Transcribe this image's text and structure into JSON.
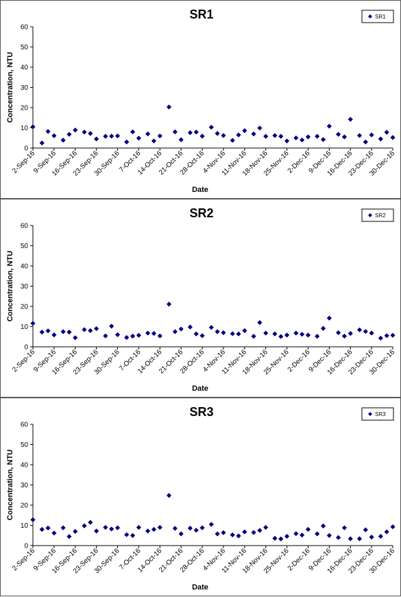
{
  "chart_data": [
    {
      "type": "scatter",
      "title": "SR1",
      "xlabel": "Date",
      "ylabel": "Concentration, NTU",
      "legend": {
        "entry": "SR1",
        "placement": "top-right"
      },
      "ylim": [
        0,
        60
      ],
      "yticks": [
        0,
        10,
        20,
        30,
        40,
        50,
        60
      ],
      "xlim": [
        "2016-09-02",
        "2016-12-30"
      ],
      "xtick_labels": [
        "2-Sep-16",
        "9-Sep-16",
        "16-Sep-16",
        "23-Sep-16",
        "30-Sep-16",
        "7-Oct-16",
        "14-Oct-16",
        "21-Oct-16",
        "28-Oct-16",
        "4-Nov-16",
        "11-Nov-16",
        "18-Nov-16",
        "25-Nov-16",
        "2-Dec-16",
        "9-Dec-16",
        "16-Dec-16",
        "23-Dec-16",
        "30-Dec-16"
      ],
      "marker_color": "#000080",
      "grid": false,
      "series": [
        {
          "name": "SR1",
          "points": [
            [
              "2016-09-02",
              10.5
            ],
            [
              "2016-09-05",
              2.5
            ],
            [
              "2016-09-07",
              8.2
            ],
            [
              "2016-09-09",
              6.1
            ],
            [
              "2016-09-12",
              3.9
            ],
            [
              "2016-09-14",
              6.8
            ],
            [
              "2016-09-16",
              8.9
            ],
            [
              "2016-09-19",
              7.9
            ],
            [
              "2016-09-21",
              7.2
            ],
            [
              "2016-09-23",
              4.5
            ],
            [
              "2016-09-26",
              5.8
            ],
            [
              "2016-09-28",
              5.9
            ],
            [
              "2016-09-30",
              6.0
            ],
            [
              "2016-10-03",
              3.0
            ],
            [
              "2016-10-05",
              8.0
            ],
            [
              "2016-10-07",
              4.9
            ],
            [
              "2016-10-10",
              7.0
            ],
            [
              "2016-10-12",
              3.5
            ],
            [
              "2016-10-14",
              6.0
            ],
            [
              "2016-10-17",
              20.3
            ],
            [
              "2016-10-19",
              8.0
            ],
            [
              "2016-10-21",
              4.1
            ],
            [
              "2016-10-24",
              7.6
            ],
            [
              "2016-10-26",
              7.9
            ],
            [
              "2016-10-28",
              5.9
            ],
            [
              "2016-10-31",
              10.3
            ],
            [
              "2016-11-02",
              7.2
            ],
            [
              "2016-11-04",
              6.2
            ],
            [
              "2016-11-07",
              3.8
            ],
            [
              "2016-11-09",
              6.5
            ],
            [
              "2016-11-11",
              8.6
            ],
            [
              "2016-11-14",
              7.0
            ],
            [
              "2016-11-16",
              9.9
            ],
            [
              "2016-11-18",
              5.8
            ],
            [
              "2016-11-21",
              6.2
            ],
            [
              "2016-11-23",
              5.8
            ],
            [
              "2016-11-25",
              3.5
            ],
            [
              "2016-11-28",
              5.0
            ],
            [
              "2016-11-30",
              4.0
            ],
            [
              "2016-12-02",
              5.5
            ],
            [
              "2016-12-05",
              5.8
            ],
            [
              "2016-12-07",
              4.2
            ],
            [
              "2016-12-09",
              10.8
            ],
            [
              "2016-12-12",
              6.8
            ],
            [
              "2016-12-14",
              5.5
            ],
            [
              "2016-12-16",
              14.2
            ],
            [
              "2016-12-19",
              6.2
            ],
            [
              "2016-12-21",
              3.0
            ],
            [
              "2016-12-23",
              6.5
            ],
            [
              "2016-12-26",
              4.5
            ],
            [
              "2016-12-28",
              7.8
            ],
            [
              "2016-12-30",
              5.2
            ]
          ]
        }
      ]
    },
    {
      "type": "scatter",
      "title": "SR2",
      "xlabel": "Date",
      "ylabel": "Concentration, NTU",
      "legend": {
        "entry": "SR2",
        "placement": "top-right"
      },
      "ylim": [
        0,
        60
      ],
      "yticks": [
        0,
        10,
        20,
        30,
        40,
        50,
        60
      ],
      "xlim": [
        "2016-09-02",
        "2016-12-30"
      ],
      "xtick_labels": [
        "2-Sep-16",
        "9-Sep-16",
        "16-Sep-16",
        "23-Sep-16",
        "30-Sep-16",
        "7-Oct-16",
        "14-Oct-16",
        "21-Oct-16",
        "28-Oct-16",
        "4-Nov-16",
        "11-Nov-16",
        "18-Nov-16",
        "25-Nov-16",
        "2-Dec-16",
        "9-Dec-16",
        "16-Dec-16",
        "23-Dec-16",
        "30-Dec-16"
      ],
      "marker_color": "#000080",
      "grid": false,
      "series": [
        {
          "name": "SR2",
          "points": [
            [
              "2016-09-02",
              11.6
            ],
            [
              "2016-09-05",
              7.3
            ],
            [
              "2016-09-07",
              7.9
            ],
            [
              "2016-09-09",
              5.9
            ],
            [
              "2016-09-12",
              7.5
            ],
            [
              "2016-09-14",
              7.3
            ],
            [
              "2016-09-16",
              4.5
            ],
            [
              "2016-09-19",
              8.5
            ],
            [
              "2016-09-21",
              8.0
            ],
            [
              "2016-09-23",
              9.0
            ],
            [
              "2016-09-26",
              5.4
            ],
            [
              "2016-09-28",
              10.2
            ],
            [
              "2016-09-30",
              6.0
            ],
            [
              "2016-10-03",
              4.6
            ],
            [
              "2016-10-05",
              5.3
            ],
            [
              "2016-10-07",
              5.7
            ],
            [
              "2016-10-10",
              6.8
            ],
            [
              "2016-10-12",
              6.6
            ],
            [
              "2016-10-14",
              5.4
            ],
            [
              "2016-10-17",
              21.1
            ],
            [
              "2016-10-19",
              7.5
            ],
            [
              "2016-10-21",
              8.8
            ],
            [
              "2016-10-24",
              9.8
            ],
            [
              "2016-10-26",
              6.4
            ],
            [
              "2016-10-28",
              5.5
            ],
            [
              "2016-10-31",
              9.6
            ],
            [
              "2016-11-02",
              7.5
            ],
            [
              "2016-11-04",
              7.0
            ],
            [
              "2016-11-07",
              6.5
            ],
            [
              "2016-11-09",
              6.4
            ],
            [
              "2016-11-11",
              8.0
            ],
            [
              "2016-11-14",
              5.2
            ],
            [
              "2016-11-16",
              12.0
            ],
            [
              "2016-11-18",
              6.8
            ],
            [
              "2016-11-21",
              6.4
            ],
            [
              "2016-11-23",
              5.1
            ],
            [
              "2016-11-25",
              5.8
            ],
            [
              "2016-11-28",
              6.8
            ],
            [
              "2016-11-30",
              6.2
            ],
            [
              "2016-12-02",
              5.8
            ],
            [
              "2016-12-05",
              5.2
            ],
            [
              "2016-12-07",
              9.1
            ],
            [
              "2016-12-09",
              14.2
            ],
            [
              "2016-12-12",
              7.0
            ],
            [
              "2016-12-14",
              5.3
            ],
            [
              "2016-12-16",
              6.6
            ],
            [
              "2016-12-19",
              8.4
            ],
            [
              "2016-12-21",
              7.6
            ],
            [
              "2016-12-23",
              6.8
            ],
            [
              "2016-12-26",
              4.3
            ],
            [
              "2016-12-28",
              5.5
            ],
            [
              "2016-12-30",
              5.7
            ]
          ]
        }
      ]
    },
    {
      "type": "scatter",
      "title": "SR3",
      "xlabel": "Date",
      "ylabel": "Concentration, NTU",
      "legend": {
        "entry": "SR3",
        "placement": "top-right"
      },
      "ylim": [
        0,
        60
      ],
      "yticks": [
        0,
        10,
        20,
        30,
        40,
        50,
        60
      ],
      "xlim": [
        "2016-09-02",
        "2016-12-30"
      ],
      "xtick_labels": [
        "2-Sep-16",
        "9-Sep-16",
        "16-Sep-16",
        "23-Sep-16",
        "30-Sep-16",
        "7-Oct-16",
        "14-Oct-16",
        "21-Oct-16",
        "28-Oct-16",
        "4-Nov-16",
        "11-Nov-16",
        "18-Nov-16",
        "25-Nov-16",
        "2-Dec-16",
        "9-Dec-16",
        "16-Dec-16",
        "23-Dec-16",
        "30-Dec-16"
      ],
      "marker_color": "#000080",
      "grid": false,
      "series": [
        {
          "name": "SR3",
          "points": [
            [
              "2016-09-02",
              12.8
            ],
            [
              "2016-09-05",
              8.0
            ],
            [
              "2016-09-07",
              8.7
            ],
            [
              "2016-09-09",
              6.2
            ],
            [
              "2016-09-12",
              8.8
            ],
            [
              "2016-09-14",
              4.5
            ],
            [
              "2016-09-16",
              7.0
            ],
            [
              "2016-09-19",
              9.8
            ],
            [
              "2016-09-21",
              11.5
            ],
            [
              "2016-09-23",
              7.2
            ],
            [
              "2016-09-26",
              9.0
            ],
            [
              "2016-09-28",
              8.2
            ],
            [
              "2016-09-30",
              8.8
            ],
            [
              "2016-10-03",
              5.4
            ],
            [
              "2016-10-05",
              5.0
            ],
            [
              "2016-10-07",
              9.0
            ],
            [
              "2016-10-10",
              7.2
            ],
            [
              "2016-10-12",
              8.0
            ],
            [
              "2016-10-14",
              9.0
            ],
            [
              "2016-10-17",
              24.8
            ],
            [
              "2016-10-19",
              8.5
            ],
            [
              "2016-10-21",
              5.8
            ],
            [
              "2016-10-24",
              8.6
            ],
            [
              "2016-10-26",
              7.6
            ],
            [
              "2016-10-28",
              8.8
            ],
            [
              "2016-10-31",
              10.5
            ],
            [
              "2016-11-02",
              5.8
            ],
            [
              "2016-11-04",
              6.4
            ],
            [
              "2016-11-07",
              5.3
            ],
            [
              "2016-11-09",
              4.8
            ],
            [
              "2016-11-11",
              6.8
            ],
            [
              "2016-11-14",
              6.5
            ],
            [
              "2016-11-16",
              7.5
            ],
            [
              "2016-11-18",
              9.0
            ],
            [
              "2016-11-21",
              3.6
            ],
            [
              "2016-11-23",
              3.3
            ],
            [
              "2016-11-25",
              4.6
            ],
            [
              "2016-11-28",
              5.9
            ],
            [
              "2016-11-30",
              5.2
            ],
            [
              "2016-12-02",
              8.0
            ],
            [
              "2016-12-05",
              5.8
            ],
            [
              "2016-12-07",
              9.7
            ],
            [
              "2016-12-09",
              5.0
            ],
            [
              "2016-12-12",
              4.0
            ],
            [
              "2016-12-14",
              8.8
            ],
            [
              "2016-12-16",
              3.4
            ],
            [
              "2016-12-19",
              3.4
            ],
            [
              "2016-12-21",
              7.8
            ],
            [
              "2016-12-23",
              4.2
            ],
            [
              "2016-12-26",
              4.6
            ],
            [
              "2016-12-28",
              6.8
            ],
            [
              "2016-12-30",
              9.3
            ]
          ]
        }
      ]
    }
  ]
}
